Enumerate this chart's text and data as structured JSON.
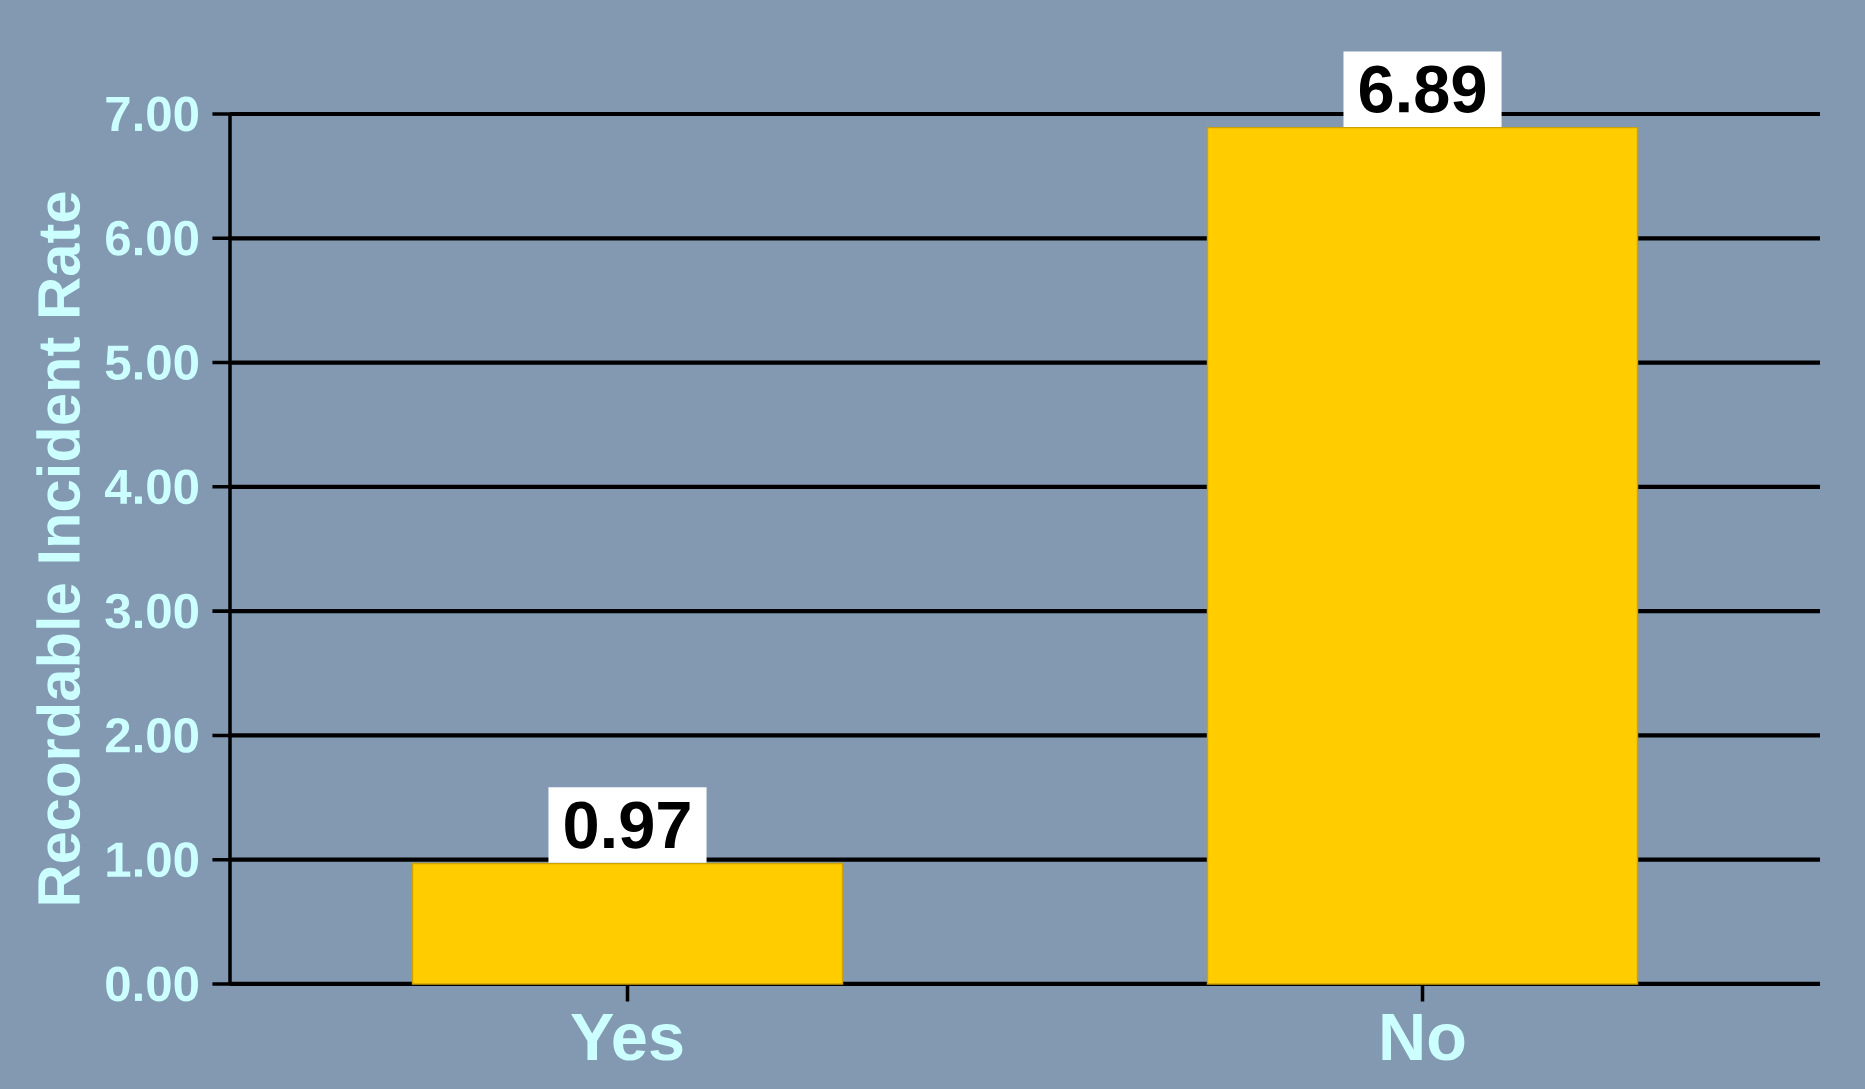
{
  "chart_data": {
    "type": "bar",
    "ylabel": "Recordable Incident Rate",
    "categories": [
      "Yes",
      "No"
    ],
    "values": [
      0.97,
      6.89
    ],
    "color": "#ffcc00",
    "ylim": [
      0,
      7
    ],
    "yticks": [
      {
        "value": 0,
        "label": "0.00"
      },
      {
        "value": 1,
        "label": "1.00"
      },
      {
        "value": 2,
        "label": "2.00"
      },
      {
        "value": 3,
        "label": "3.00"
      },
      {
        "value": 4,
        "label": "4.00"
      },
      {
        "value": 5,
        "label": "5.00"
      },
      {
        "value": 6,
        "label": "6.00"
      },
      {
        "value": 7,
        "label": "7.00"
      }
    ],
    "grid": "y",
    "data_labels": true
  }
}
